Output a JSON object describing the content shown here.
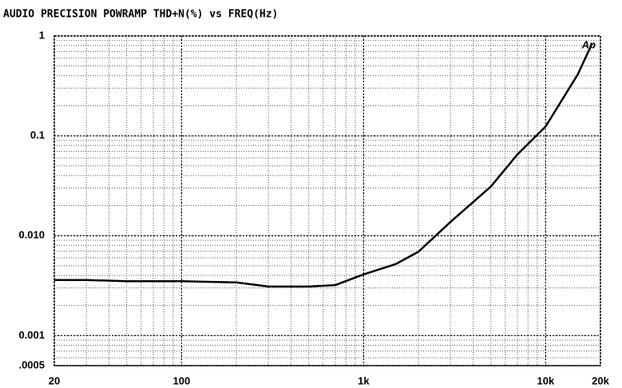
{
  "chart_data": {
    "type": "line",
    "title": "AUDIO PRECISION POWRAMP THD+N(%) vs FREQ(Hz)",
    "annotation": "Ap",
    "x": [
      20,
      30,
      50,
      100,
      200,
      300,
      500,
      700,
      1000,
      1500,
      2000,
      3000,
      5000,
      7000,
      10000,
      15000,
      18000
    ],
    "series": [
      {
        "name": "THD+N",
        "color": "#000000",
        "values": [
          0.0036,
          0.0036,
          0.0035,
          0.0035,
          0.0034,
          0.0031,
          0.0031,
          0.0032,
          0.0041,
          0.0052,
          0.0069,
          0.0137,
          0.031,
          0.065,
          0.124,
          0.41,
          0.84
        ]
      }
    ],
    "xlim": [
      20,
      20000
    ],
    "xticks": [
      20,
      100,
      {
        "value": 1000,
        "label": "1k"
      },
      {
        "value": 10000,
        "label": "10k"
      },
      {
        "value": 20000,
        "label": "20k"
      }
    ],
    "ylim": [
      0.0005,
      1
    ],
    "yticks": [
      1,
      0.1,
      {
        "value": 0.01,
        "label": "0.010"
      },
      0.001,
      {
        "value": 0.0005,
        "label": ".0005"
      }
    ],
    "xscale": "log",
    "yscale": "log",
    "grid": true,
    "minor_grid": true
  }
}
